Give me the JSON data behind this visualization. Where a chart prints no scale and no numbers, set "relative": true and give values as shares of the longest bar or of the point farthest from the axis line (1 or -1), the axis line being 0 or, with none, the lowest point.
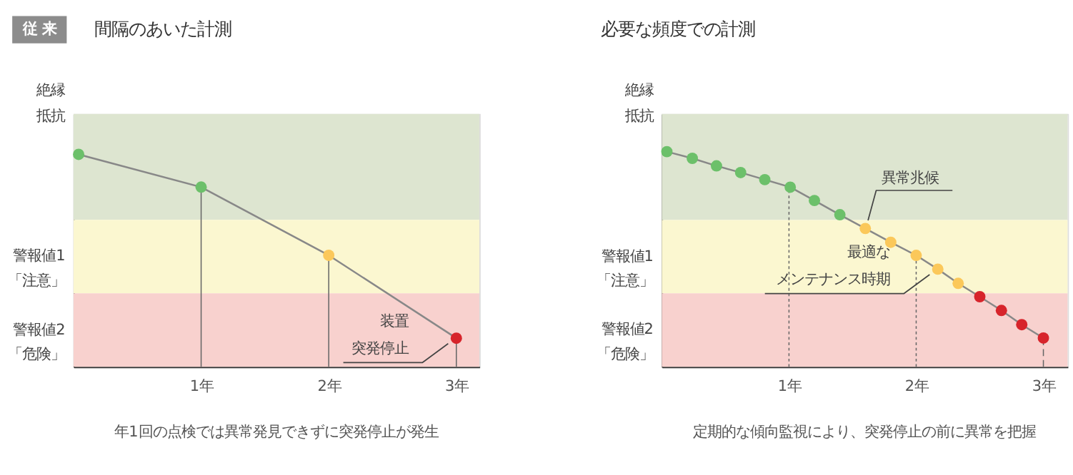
{
  "chart_data": [
    {
      "type": "line",
      "title": "間隔のあいた計測",
      "subtitle": "従 来",
      "ylabel": "絶縁抵抗",
      "relative": true,
      "marker": "circle",
      "line_style": "solid",
      "grid": false,
      "x": [
        0.04,
        1,
        2,
        3
      ],
      "xlim": [
        0,
        3.18
      ],
      "xticks": [
        {
          "value": 1,
          "label": "1年"
        },
        {
          "value": 2,
          "label": "2年"
        },
        {
          "value": 3,
          "label": "3年"
        }
      ],
      "series": [
        {
          "color": "#888888",
          "values": [
            1,
            0.846,
            0.525,
            0.135
          ],
          "colors": [
            "#6cc06a",
            "#6cc06a",
            "#fbc85a",
            "#d7242b"
          ]
        }
      ],
      "bands": [
        {
          "axis": "y",
          "from": 0.692,
          "to": 1.19,
          "color": "#dde5d0"
        },
        {
          "axis": "y",
          "from": 0.346,
          "to": 0.692,
          "label": "警報値1\n「注意」",
          "color": "#fbf7d0"
        },
        {
          "axis": "y",
          "from": 0,
          "to": 0.346,
          "label": "警報値2\n「危険」",
          "color": "#f8d1ce"
        }
      ],
      "ref_lines": [
        {
          "axis": "x",
          "value": 1,
          "line_style": "solid"
        },
        {
          "axis": "x",
          "value": 2,
          "line_style": "solid"
        },
        {
          "axis": "x",
          "value": 3,
          "line_style": "solid"
        }
      ],
      "annotations": [
        "装置",
        {
          "text": "突発停止",
          "x": 3,
          "y": 0.135
        },
        "年1回の点検では異常発見できずに突発停止が発生"
      ]
    },
    {
      "type": "line",
      "title": "必要な頻度での計測",
      "ylabel": "絶縁抵抗",
      "relative": true,
      "marker": "circle",
      "line_style": "solid",
      "grid": false,
      "x": [
        0.04,
        0.24,
        0.43,
        0.62,
        0.81,
        1.01,
        1.2,
        1.4,
        1.6,
        1.8,
        2.0,
        2.17,
        2.33,
        2.5,
        2.67,
        2.83,
        3.0
      ],
      "xlim": [
        0,
        3.19
      ],
      "xticks": [
        {
          "value": 1,
          "label": "1年"
        },
        {
          "value": 2,
          "label": "2年"
        },
        {
          "value": 3,
          "label": "3年"
        }
      ],
      "series": [
        {
          "color": "#888888",
          "values": [
            1,
            0.969,
            0.934,
            0.903,
            0.87,
            0.835,
            0.773,
            0.707,
            0.643,
            0.579,
            0.518,
            0.454,
            0.388,
            0.326,
            0.262,
            0.196,
            0.134
          ],
          "colors": [
            "#6cc06a",
            "#6cc06a",
            "#6cc06a",
            "#6cc06a",
            "#6cc06a",
            "#6cc06a",
            "#6cc06a",
            "#6cc06a",
            "#fbc85a",
            "#fbc85a",
            "#fbc85a",
            "#fbc85a",
            "#fbc85a",
            "#d7242b",
            "#d7242b",
            "#d7242b",
            "#d7242b"
          ]
        }
      ],
      "bands": [
        {
          "axis": "y",
          "from": 0.682,
          "to": 1.175,
          "color": "#dde5d0"
        },
        {
          "axis": "y",
          "from": 0.342,
          "to": 0.682,
          "label": "警報値1\n「注意」",
          "color": "#fbf7d0"
        },
        {
          "axis": "y",
          "from": 0,
          "to": 0.342,
          "label": "警報値2\n「危険」",
          "color": "#f8d1ce"
        }
      ],
      "ref_lines": [
        {
          "axis": "x",
          "value": 1,
          "line_style": "dotted"
        },
        {
          "axis": "x",
          "value": 2,
          "line_style": "dotted"
        },
        {
          "axis": "x",
          "value": 3,
          "line_style": "dashed"
        }
      ],
      "annotations": [
        {
          "text": "異常兆候",
          "x": 1.6,
          "y": 0.643
        },
        "最適な",
        {
          "text": "メンテナンス時期",
          "x": 2.17,
          "y": 0.454
        },
        "定期的な傾向監視により、突発停止の前に異常を把握"
      ]
    }
  ]
}
